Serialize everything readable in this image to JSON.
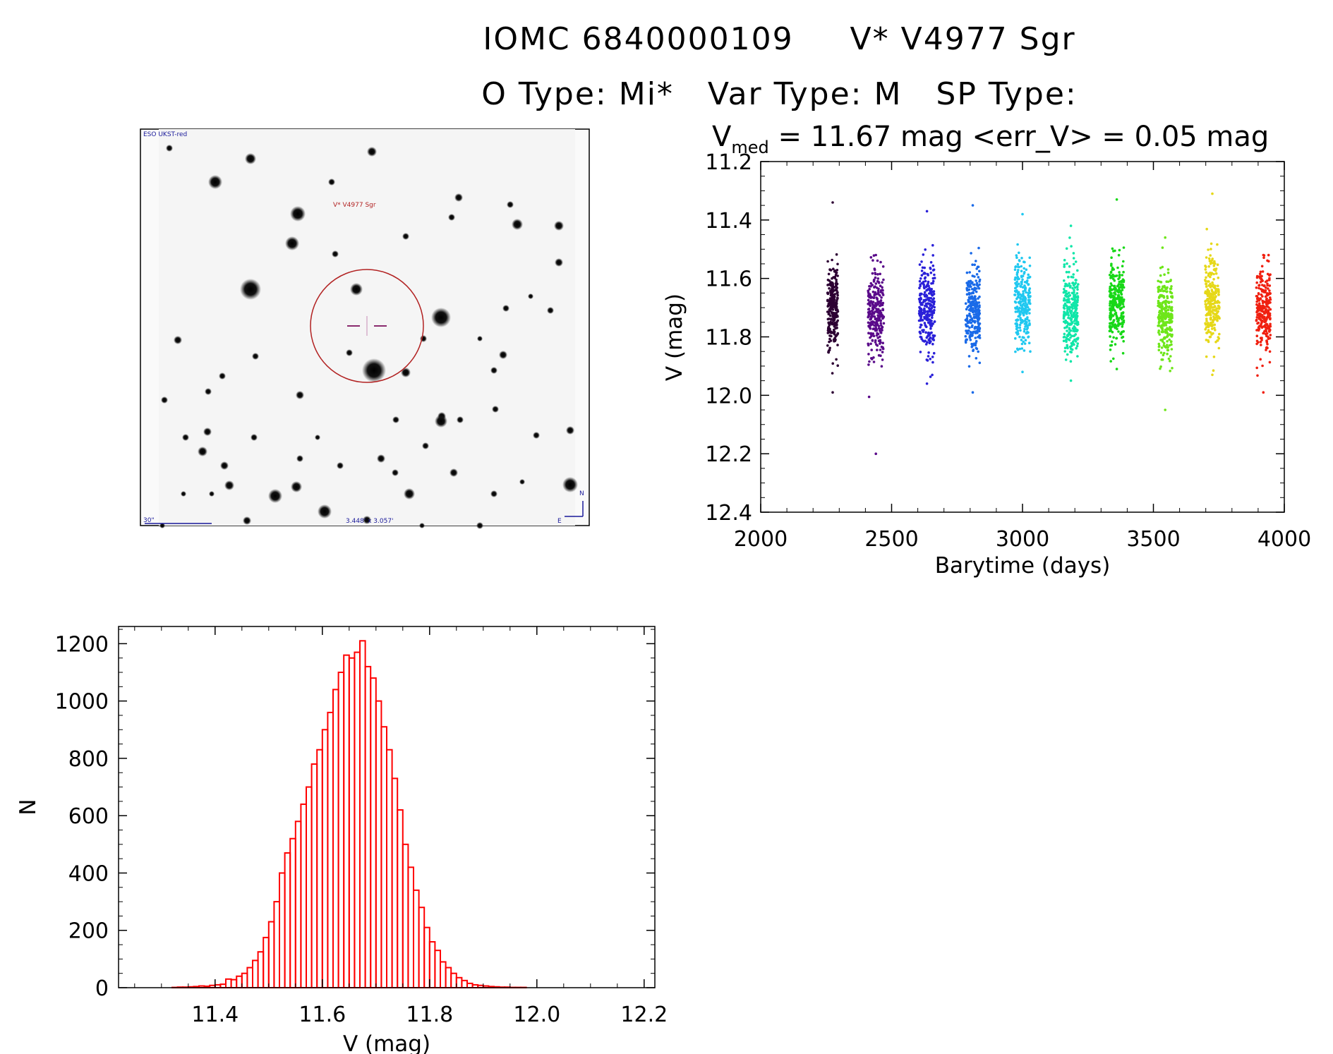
{
  "header": {
    "line1": "IOMC 6840000109     V* V4977 Sgr",
    "line2": "O Type: Mi*   Var Type: M   SP Type:"
  },
  "finder": {
    "survey_label": "ESO UKST-red",
    "target_label": "V* V4977 Sgr",
    "scale_label": "30\"",
    "fov_label": "3.448' x 3.057'",
    "north_label": "N",
    "east_label": "E",
    "target_color": "#b22222",
    "annot_color": "#1a1a9a"
  },
  "chart_data": [
    {
      "type": "scatter",
      "title_prefix": "V",
      "title_sub": "med",
      "title_rest": " = 11.67 mag <err_V> = 0.05 mag",
      "xlabel": "Barytime (days)",
      "ylabel": "V (mag)",
      "xlim": [
        2000,
        4000
      ],
      "ylim": [
        12.4,
        11.2
      ],
      "y_reversed": true,
      "xticks": [
        2000,
        2500,
        3000,
        3500,
        4000
      ],
      "yticks": [
        11.2,
        11.4,
        11.6,
        11.8,
        12.0,
        12.2,
        12.4
      ],
      "xtick_labels": [
        "2000",
        "2500",
        "3000",
        "3500",
        "4000"
      ],
      "ytick_labels": [
        "11.2",
        "11.4",
        "11.6",
        "11.8",
        "12.0",
        "12.2",
        "12.4"
      ],
      "clusters": [
        {
          "x": 2275,
          "width": 40,
          "y_center": 11.7,
          "y_min": 11.34,
          "y_max": 11.99,
          "color": "#2d0033"
        },
        {
          "x": 2440,
          "width": 60,
          "y_center": 11.72,
          "y_min": 11.52,
          "y_max": 12.2,
          "color": "#5a0a8a"
        },
        {
          "x": 2635,
          "width": 60,
          "y_center": 11.7,
          "y_min": 11.37,
          "y_max": 11.96,
          "color": "#2a20d8"
        },
        {
          "x": 2810,
          "width": 55,
          "y_center": 11.71,
          "y_min": 11.35,
          "y_max": 11.99,
          "color": "#1a6ae8"
        },
        {
          "x": 3000,
          "width": 60,
          "y_center": 11.68,
          "y_min": 11.38,
          "y_max": 11.92,
          "color": "#20c8f0"
        },
        {
          "x": 3185,
          "width": 55,
          "y_center": 11.71,
          "y_min": 11.42,
          "y_max": 11.95,
          "color": "#10e6a8"
        },
        {
          "x": 3360,
          "width": 55,
          "y_center": 11.68,
          "y_min": 11.33,
          "y_max": 11.91,
          "color": "#18d818"
        },
        {
          "x": 3545,
          "width": 55,
          "y_center": 11.72,
          "y_min": 11.46,
          "y_max": 12.05,
          "color": "#6ee61a"
        },
        {
          "x": 3725,
          "width": 55,
          "y_center": 11.68,
          "y_min": 11.31,
          "y_max": 11.93,
          "color": "#e6d818"
        },
        {
          "x": 3920,
          "width": 55,
          "y_center": 11.72,
          "y_min": 11.52,
          "y_max": 11.99,
          "color": "#f02010"
        }
      ]
    },
    {
      "type": "bar",
      "style": "step-histogram",
      "xlabel": "V (mag)",
      "ylabel": "N",
      "xlim": [
        11.22,
        12.22
      ],
      "ylim": [
        0,
        1260
      ],
      "xticks": [
        11.4,
        11.6,
        11.8,
        12.0,
        12.2
      ],
      "yticks": [
        0,
        200,
        400,
        600,
        800,
        1000,
        1200
      ],
      "xtick_labels": [
        "11.4",
        "11.6",
        "11.8",
        "12.0",
        "12.2"
      ],
      "ytick_labels": [
        "0",
        "200",
        "400",
        "600",
        "800",
        "1000",
        "1200"
      ],
      "bin_start": 11.22,
      "bin_width": 0.01,
      "values": [
        0,
        0,
        0,
        0,
        0,
        0,
        0,
        0,
        0,
        0,
        1,
        2,
        2,
        3,
        4,
        6,
        5,
        8,
        10,
        12,
        30,
        28,
        40,
        50,
        70,
        95,
        125,
        175,
        230,
        300,
        400,
        470,
        520,
        580,
        640,
        700,
        780,
        830,
        900,
        960,
        1040,
        1100,
        1160,
        1150,
        1170,
        1210,
        1120,
        1080,
        1000,
        910,
        830,
        730,
        620,
        500,
        420,
        340,
        280,
        210,
        160,
        130,
        90,
        70,
        50,
        35,
        25,
        15,
        10,
        8,
        6,
        4,
        3,
        2,
        2,
        1,
        1,
        1,
        0,
        0,
        0,
        0,
        0,
        0,
        0,
        0,
        0,
        0,
        0,
        0,
        0,
        0,
        0,
        0,
        0,
        0,
        0,
        0,
        0,
        0,
        0,
        0
      ],
      "color": "#ff0000"
    }
  ]
}
